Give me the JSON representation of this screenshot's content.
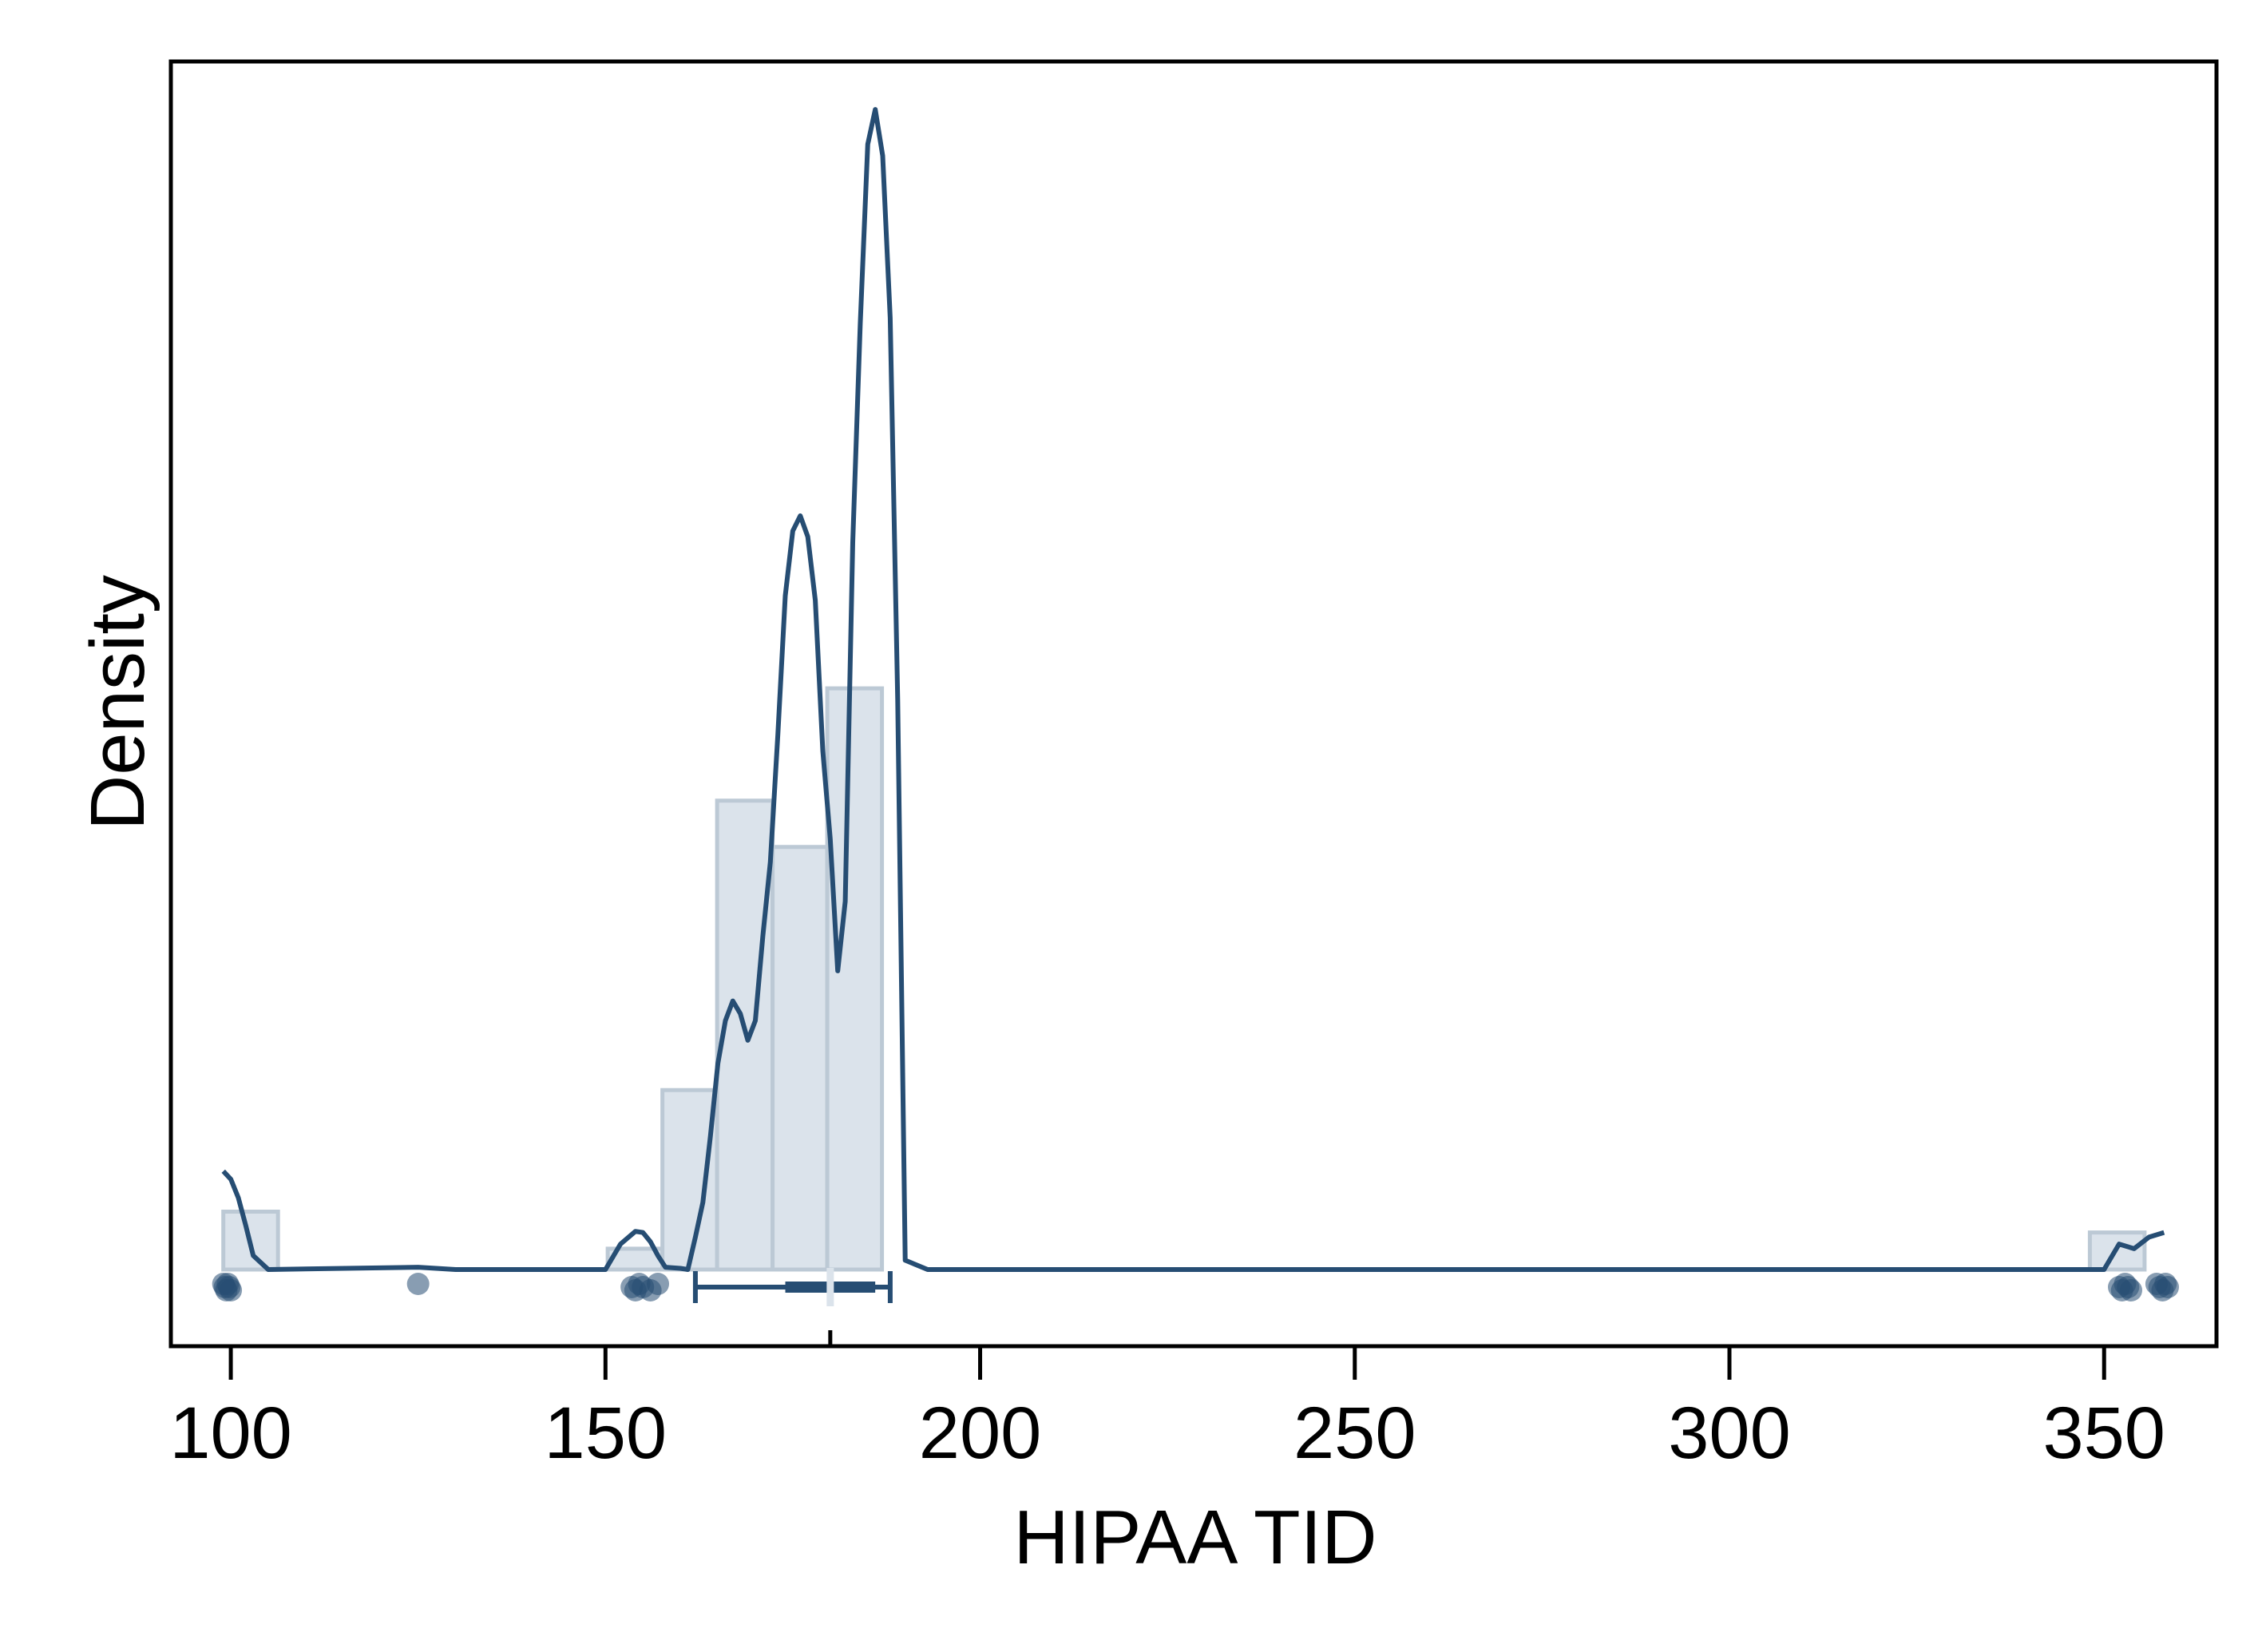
{
  "chart_data": {
    "type": "histogram",
    "title": "",
    "xlabel": "HIPAA TID",
    "ylabel": "Density",
    "xlim": [
      92,
      365
    ],
    "ylim": [
      0,
      0.1
    ],
    "xticks": [
      "100",
      "150",
      "200",
      "250",
      "300",
      "350"
    ],
    "yticks": [],
    "grid": false,
    "legend": "none",
    "colors": {
      "bar_fill": "#dbe3eb",
      "bar_stroke": "#bcc9d5",
      "line": "#264d73",
      "points": "#264d73",
      "axis": "#000000"
    },
    "histogram": {
      "bin_edges": [
        99,
        106.3,
        113.7,
        121.0,
        128.3,
        135.6,
        143.0,
        150.3,
        157.6,
        164.9,
        172.3,
        179.6,
        186.9,
        194.2,
        201.6,
        208.9,
        216.2,
        223.5,
        230.9,
        238.2,
        245.5,
        252.8,
        260.2,
        267.5,
        274.8,
        282.1,
        289.5,
        296.8,
        304.1,
        311.4,
        318.8,
        326.1,
        333.4,
        340.7,
        348.1,
        355.4
      ],
      "densities": [
        0.005,
        0,
        0,
        0,
        0,
        0,
        0,
        0.0018,
        0.0155,
        0.0405,
        0.0365,
        0.0502,
        0,
        0,
        0,
        0,
        0,
        0,
        0,
        0,
        0,
        0,
        0,
        0,
        0,
        0,
        0,
        0,
        0,
        0,
        0,
        0,
        0,
        0,
        0.0032
      ]
    },
    "density_curve": {
      "x": [
        99,
        100,
        101,
        102,
        103,
        105,
        125,
        130,
        150,
        152,
        154,
        155,
        156,
        157,
        158,
        160,
        161,
        162,
        163,
        164,
        165,
        166,
        167,
        168,
        169,
        170,
        171,
        172,
        173,
        174,
        175,
        176,
        177,
        178,
        179,
        180,
        181,
        182,
        183,
        184,
        185,
        186,
        187,
        188,
        189,
        190,
        193,
        350,
        352,
        354,
        356,
        358
      ],
      "y": [
        0.0085,
        0.0078,
        0.0062,
        0.0038,
        0.0012,
        0,
        0.0002,
        0,
        0,
        0.0022,
        0.0033,
        0.0032,
        0.0024,
        0.0012,
        0.0002,
        0.0001,
        0,
        0.0028,
        0.0058,
        0.0115,
        0.0178,
        0.0215,
        0.0232,
        0.0221,
        0.0198,
        0.0215,
        0.0288,
        0.0352,
        0.0462,
        0.0582,
        0.0638,
        0.0651,
        0.0633,
        0.0578,
        0.0448,
        0.0372,
        0.0258,
        0.0318,
        0.0628,
        0.0817,
        0.0972,
        0.1002,
        0.0962,
        0.0822,
        0.0492,
        0.0008,
        0,
        0,
        0.0022,
        0.0018,
        0.0028,
        0.0032
      ]
    },
    "rug_points": [
      99,
      99.2,
      99.4,
      99.6,
      99.8,
      100,
      125,
      153.5,
      154,
      154.5,
      155,
      156,
      157,
      352,
      352.4,
      352.8,
      353.2,
      353.6,
      357,
      357.4,
      357.8,
      358.2,
      358.5
    ],
    "boxplot": {
      "whisker_low": 162,
      "q1": 174,
      "median": 180,
      "q3": 186,
      "whisker_high": 188
    }
  }
}
